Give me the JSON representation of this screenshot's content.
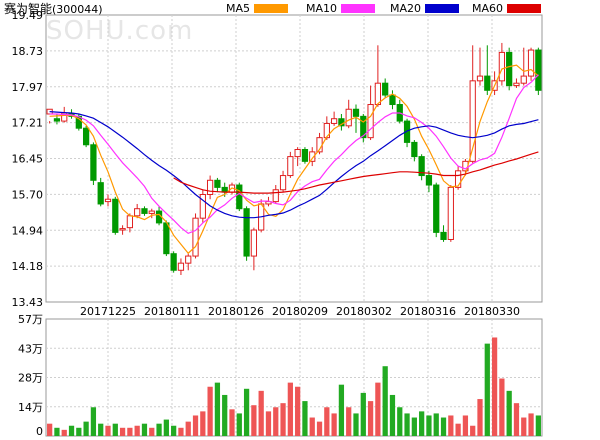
{
  "header": {
    "name": "赛为智能",
    "code": "(300044)",
    "watermark": "SOHU.com"
  },
  "legend": [
    {
      "label": "MA5",
      "color": "#ff9900"
    },
    {
      "label": "MA10",
      "color": "#ff33ff"
    },
    {
      "label": "MA20",
      "color": "#0000cc"
    },
    {
      "label": "MA60",
      "color": "#dd0000"
    }
  ],
  "chart_data": {
    "type": "candlestick",
    "price_axis": {
      "ticks": [
        "19.49",
        "18.73",
        "17.97",
        "17.21",
        "16.45",
        "15.70",
        "14.94",
        "14.18",
        "13.43"
      ],
      "range": [
        13.43,
        19.49
      ]
    },
    "volume_axis": {
      "ticks": [
        "57万",
        "43万",
        "28万",
        "14万",
        "0"
      ],
      "range": [
        0,
        57
      ]
    },
    "date_labels": [
      "20171225",
      "20180111",
      "20180126",
      "20180209",
      "20180302",
      "20180316",
      "20180330"
    ],
    "candles": [
      [
        17.4,
        17.5,
        17.25,
        17.2
      ],
      [
        17.3,
        17.25,
        17.4,
        17.18
      ],
      [
        17.25,
        17.42,
        17.55,
        17.22
      ],
      [
        17.4,
        17.35,
        17.5,
        17.3
      ],
      [
        17.35,
        17.1,
        17.4,
        17.05
      ],
      [
        17.1,
        16.75,
        17.15,
        16.7
      ],
      [
        16.75,
        16.0,
        16.8,
        15.9
      ],
      [
        15.95,
        15.5,
        16.05,
        15.45
      ],
      [
        15.55,
        15.6,
        15.7,
        15.45
      ],
      [
        15.6,
        14.9,
        15.65,
        14.85
      ],
      [
        14.95,
        14.98,
        15.05,
        14.85
      ],
      [
        15.0,
        15.25,
        15.3,
        14.9
      ],
      [
        15.25,
        15.4,
        15.5,
        15.2
      ],
      [
        15.4,
        15.3,
        15.45,
        15.25
      ],
      [
        15.3,
        15.35,
        15.4,
        15.2
      ],
      [
        15.35,
        15.1,
        15.45,
        15.05
      ],
      [
        15.1,
        14.45,
        15.15,
        14.4
      ],
      [
        14.45,
        14.1,
        14.5,
        14.05
      ],
      [
        14.1,
        14.25,
        14.35,
        14.0
      ],
      [
        14.25,
        14.4,
        14.45,
        14.1
      ],
      [
        14.4,
        15.2,
        15.3,
        14.35
      ],
      [
        15.2,
        15.7,
        15.8,
        15.1
      ],
      [
        15.7,
        16.0,
        16.1,
        15.6
      ],
      [
        16.0,
        15.85,
        16.05,
        15.75
      ],
      [
        15.85,
        15.75,
        15.95,
        15.65
      ],
      [
        15.75,
        15.9,
        15.95,
        15.7
      ],
      [
        15.9,
        15.4,
        15.95,
        15.35
      ],
      [
        15.4,
        14.4,
        15.45,
        14.3
      ],
      [
        14.4,
        14.95,
        15.0,
        14.1
      ],
      [
        14.95,
        15.5,
        15.6,
        14.9
      ],
      [
        15.5,
        15.55,
        15.65,
        15.45
      ],
      [
        15.55,
        15.8,
        15.9,
        15.5
      ],
      [
        15.8,
        16.1,
        16.2,
        15.75
      ],
      [
        16.1,
        16.5,
        16.6,
        16.05
      ],
      [
        16.5,
        16.65,
        16.7,
        16.3
      ],
      [
        16.65,
        16.4,
        16.7,
        16.35
      ],
      [
        16.4,
        16.6,
        16.7,
        16.3
      ],
      [
        16.6,
        16.9,
        17.0,
        16.55
      ],
      [
        16.9,
        17.2,
        17.35,
        16.85
      ],
      [
        17.2,
        17.3,
        17.45,
        17.15
      ],
      [
        17.3,
        17.15,
        17.4,
        17.05
      ],
      [
        17.15,
        17.5,
        17.7,
        17.1
      ],
      [
        17.5,
        17.35,
        17.6,
        17.0
      ],
      [
        17.35,
        16.9,
        17.4,
        16.8
      ],
      [
        16.9,
        17.6,
        18.0,
        16.85
      ],
      [
        17.6,
        18.05,
        18.85,
        17.55
      ],
      [
        18.05,
        17.8,
        18.15,
        17.75
      ],
      [
        17.8,
        17.6,
        17.9,
        17.5
      ],
      [
        17.6,
        17.25,
        17.7,
        17.2
      ],
      [
        17.25,
        16.8,
        17.3,
        16.7
      ],
      [
        16.8,
        16.5,
        16.85,
        16.4
      ],
      [
        16.5,
        16.1,
        16.55,
        16.0
      ],
      [
        16.1,
        15.9,
        16.2,
        15.75
      ],
      [
        15.9,
        14.9,
        15.95,
        14.8
      ],
      [
        14.9,
        14.75,
        15.05,
        14.7
      ],
      [
        14.75,
        15.85,
        15.9,
        14.7
      ],
      [
        15.85,
        16.2,
        16.3,
        15.8
      ],
      [
        16.2,
        16.4,
        16.45,
        16.1
      ],
      [
        16.4,
        18.1,
        18.85,
        16.35
      ],
      [
        18.1,
        18.2,
        18.8,
        18.0
      ],
      [
        18.2,
        17.9,
        18.85,
        17.8
      ],
      [
        17.9,
        18.1,
        18.3,
        17.8
      ],
      [
        18.1,
        18.7,
        18.9,
        18.0
      ],
      [
        18.7,
        18.0,
        18.8,
        17.9
      ],
      [
        18.0,
        18.05,
        18.15,
        17.95
      ],
      [
        18.05,
        18.2,
        18.8,
        18.0
      ],
      [
        18.2,
        18.75,
        18.8,
        18.1
      ],
      [
        18.75,
        17.9,
        18.8,
        17.8
      ]
    ],
    "ma5": [
      17.35,
      17.36,
      17.37,
      17.37,
      17.3,
      17.17,
      16.93,
      16.53,
      16.18,
      15.75,
      15.39,
      15.25,
      15.23,
      15.17,
      15.26,
      15.28,
      15.12,
      14.84,
      14.65,
      14.46,
      14.6,
      14.93,
      15.29,
      15.64,
      15.7,
      15.84,
      15.78,
      15.58,
      15.46,
      15.5,
      15.28,
      15.24,
      15.38,
      15.71,
      16.02,
      16.24,
      16.46,
      16.65,
      16.92,
      17.09,
      17.18,
      17.27,
      17.33,
      17.23,
      17.35,
      17.62,
      17.74,
      17.82,
      17.73,
      17.56,
      17.29,
      16.93,
      16.65,
      16.33,
      15.99,
      15.86,
      15.88,
      16.12,
      16.68,
      17.24,
      17.66,
      18.0,
      18.35,
      18.4,
      18.43,
      18.3,
      18.34,
      18.2
    ],
    "ma10": [
      17.4,
      17.4,
      17.39,
      17.38,
      17.34,
      17.27,
      17.15,
      16.95,
      16.76,
      16.56,
      16.37,
      16.21,
      16.05,
      15.87,
      15.62,
      15.45,
      15.3,
      15.16,
      15.0,
      14.88,
      14.94,
      15.1,
      15.22,
      15.38,
      15.48,
      15.62,
      15.72,
      15.62,
      15.53,
      15.56,
      15.56,
      15.51,
      15.48,
      15.58,
      15.76,
      15.88,
      15.97,
      16.02,
      16.22,
      16.4,
      16.54,
      16.7,
      16.84,
      16.94,
      17.08,
      17.22,
      17.34,
      17.42,
      17.42,
      17.36,
      17.32,
      17.22,
      17.1,
      16.93,
      16.71,
      16.47,
      16.3,
      16.24,
      16.35,
      16.43,
      16.47,
      16.57,
      16.91,
      17.31,
      17.73,
      17.96,
      18.07,
      18.23
    ],
    "ma20": [
      17.45,
      17.44,
      17.43,
      17.42,
      17.4,
      17.36,
      17.31,
      17.22,
      17.13,
      17.02,
      16.91,
      16.79,
      16.67,
      16.54,
      16.42,
      16.31,
      16.21,
      16.1,
      15.98,
      15.84,
      15.7,
      15.58,
      15.46,
      15.37,
      15.3,
      15.25,
      15.22,
      15.21,
      15.21,
      15.23,
      15.26,
      15.28,
      15.31,
      15.37,
      15.45,
      15.52,
      15.6,
      15.68,
      15.81,
      15.95,
      16.08,
      16.2,
      16.31,
      16.4,
      16.52,
      16.62,
      16.73,
      16.84,
      16.95,
      17.04,
      17.1,
      17.13,
      17.15,
      17.12,
      17.06,
      17.0,
      16.95,
      16.92,
      16.9,
      16.92,
      16.95,
      17.0,
      17.08,
      17.15,
      17.18,
      17.2,
      17.24,
      17.28
    ],
    "ma60": [
      null,
      null,
      null,
      null,
      null,
      null,
      null,
      null,
      null,
      null,
      null,
      null,
      null,
      null,
      null,
      null,
      null,
      16.05,
      15.96,
      15.9,
      15.85,
      15.8,
      15.77,
      15.76,
      15.75,
      15.75,
      15.75,
      15.74,
      15.73,
      15.73,
      15.73,
      15.74,
      15.75,
      15.77,
      15.79,
      15.82,
      15.86,
      15.9,
      15.93,
      15.96,
      15.99,
      16.02,
      16.05,
      16.08,
      16.1,
      16.12,
      16.14,
      16.16,
      16.18,
      16.18,
      16.17,
      16.16,
      16.15,
      16.13,
      16.1,
      16.1,
      16.1,
      16.13,
      16.18,
      16.22,
      16.27,
      16.32,
      16.36,
      16.41,
      16.45,
      16.5,
      16.55,
      16.6
    ],
    "volume": [
      6,
      4,
      3,
      5,
      4,
      7,
      14,
      6,
      5,
      6,
      4,
      4,
      5,
      6,
      4,
      6,
      8,
      5,
      4,
      7,
      10,
      12,
      24,
      26,
      20,
      13,
      11,
      23,
      15,
      22,
      12,
      14,
      16,
      26,
      24,
      17,
      9,
      7,
      14,
      11,
      25,
      14,
      11,
      21,
      17,
      26,
      34,
      20,
      14,
      11,
      9,
      12,
      10,
      11,
      9,
      10,
      6,
      10,
      5,
      18,
      45,
      48,
      28,
      22,
      16,
      9,
      11,
      10
    ],
    "volume_up": [
      1,
      0,
      1,
      0,
      0,
      0,
      0,
      0,
      1,
      0,
      1,
      1,
      1,
      0,
      1,
      0,
      0,
      0,
      1,
      1,
      1,
      1,
      1,
      0,
      0,
      1,
      0,
      0,
      1,
      1,
      1,
      1,
      1,
      1,
      1,
      0,
      1,
      1,
      1,
      1,
      0,
      1,
      0,
      0,
      1,
      1,
      0,
      0,
      0,
      0,
      0,
      0,
      0,
      0,
      0,
      1,
      1,
      1,
      1,
      1,
      0,
      1,
      1,
      0,
      1,
      1,
      1,
      0
    ]
  }
}
